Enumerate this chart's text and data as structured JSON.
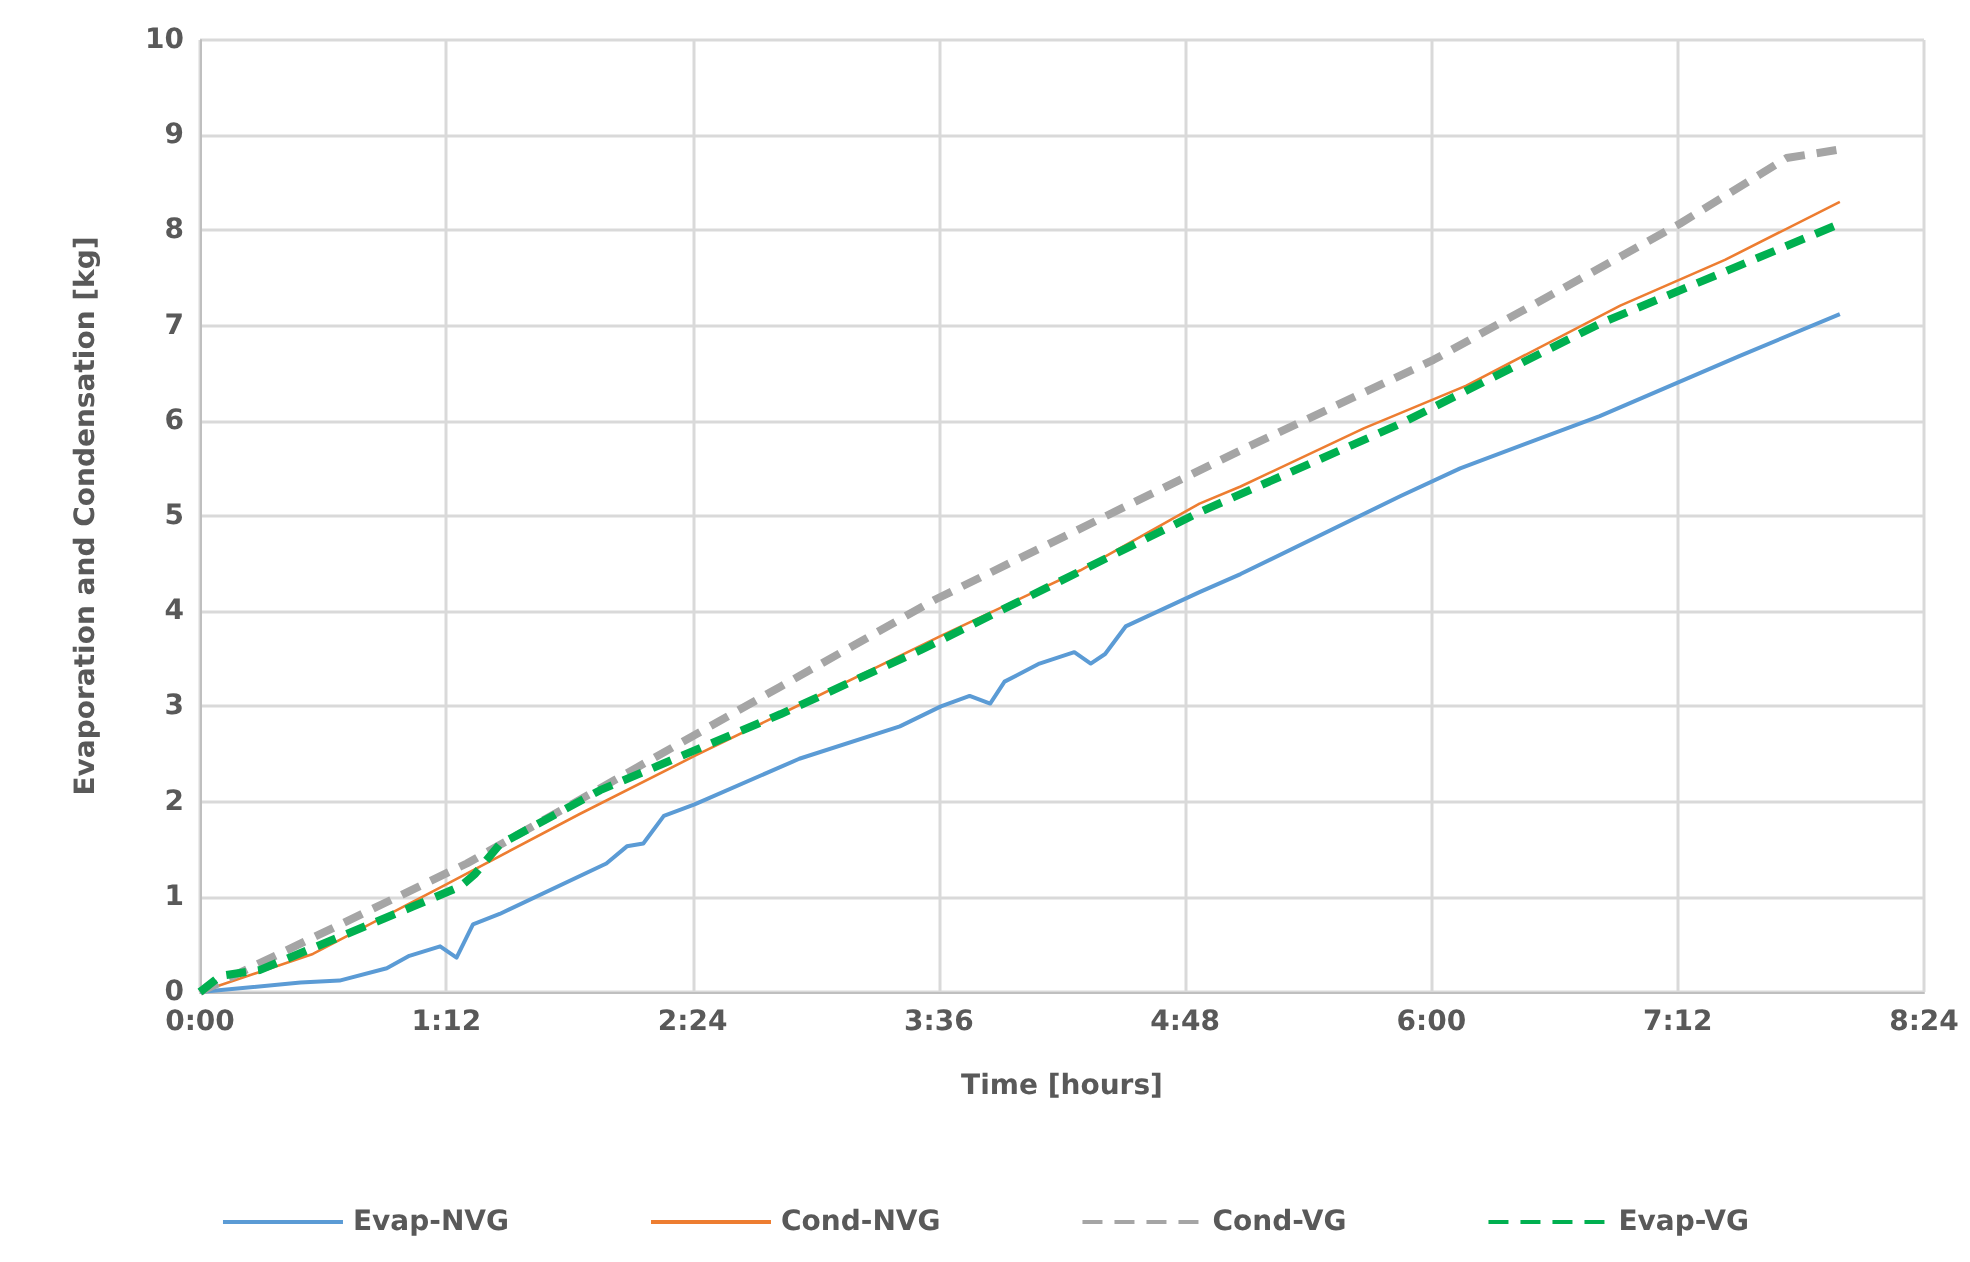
{
  "chart_data": {
    "type": "line",
    "xlabel": "Time [hours]",
    "ylabel": "Evaporation and Condensation [kg]",
    "xlim": [
      0,
      8.4
    ],
    "xticks": [
      {
        "value": 0,
        "label": "0:00"
      },
      {
        "value": 1.2,
        "label": "1:12"
      },
      {
        "value": 2.4,
        "label": "2:24"
      },
      {
        "value": 3.6,
        "label": "3:36"
      },
      {
        "value": 4.8,
        "label": "4:48"
      },
      {
        "value": 6,
        "label": "6:00"
      },
      {
        "value": 7.2,
        "label": "7:12"
      },
      {
        "value": 8.4,
        "label": "8:24"
      }
    ],
    "ylim": [
      0,
      10
    ],
    "yticks": [
      0,
      1,
      2,
      3,
      4,
      5,
      6,
      7,
      8,
      9,
      10
    ],
    "grid": true,
    "legend": "bottom",
    "marker": "none",
    "series": [
      {
        "name": "Evap-NVG",
        "color": "#5b9bd5",
        "line_style": "solid",
        "x": [
          0,
          0.49,
          0.68,
          0.91,
          1.02,
          1.17,
          1.25,
          1.33,
          1.46,
          1.98,
          2.08,
          2.16,
          2.26,
          2.41,
          2.92,
          3.41,
          3.61,
          3.75,
          3.85,
          3.92,
          4.09,
          4.26,
          4.34,
          4.41,
          4.51,
          4.87,
          5.07,
          5.85,
          6.14,
          6.82,
          7.5,
          7.99
        ],
        "values": [
          0,
          0.1,
          0.12,
          0.25,
          0.38,
          0.48,
          0.36,
          0.71,
          0.82,
          1.35,
          1.53,
          1.56,
          1.85,
          1.97,
          2.45,
          2.79,
          3.0,
          3.11,
          3.03,
          3.26,
          3.45,
          3.57,
          3.45,
          3.55,
          3.84,
          4.2,
          4.39,
          5.21,
          5.5,
          6.05,
          6.68,
          7.12
        ]
      },
      {
        "name": "Cond-NVG",
        "color": "#ed7d31",
        "line_style": "solid",
        "x": [
          0,
          0.55,
          1.2,
          1.85,
          2.41,
          2.83,
          3.61,
          4.29,
          4.87,
          5.07,
          5.67,
          6.17,
          6.92,
          7.43,
          7.99
        ],
        "values": [
          0,
          0.4,
          1.13,
          1.87,
          2.48,
          2.92,
          3.74,
          4.43,
          5.13,
          5.31,
          5.92,
          6.37,
          7.21,
          7.69,
          8.3
        ]
      },
      {
        "name": "Cond-VG",
        "color": "#a5a5a5",
        "line_style": "dashed",
        "x": [
          0,
          1.3,
          2.83,
          3.58,
          4.87,
          5.07,
          6.01,
          7.21,
          7.73,
          7.99
        ],
        "values": [
          0,
          1.35,
          3.21,
          4.12,
          5.48,
          5.69,
          6.64,
          8.07,
          8.76,
          8.85
        ]
      },
      {
        "name": "Evap-VG",
        "color": "#00b050",
        "line_style": "dashed",
        "x": [
          0,
          0.1,
          0.29,
          1.04,
          1.27,
          1.34,
          1.46,
          1.95,
          2.83,
          3.51,
          4.87,
          5.85,
          6.82,
          7.99
        ],
        "values": [
          0,
          0.17,
          0.23,
          0.9,
          1.11,
          1.24,
          1.55,
          2.12,
          2.92,
          3.59,
          5.04,
          5.97,
          7.02,
          8.07
        ]
      }
    ]
  }
}
